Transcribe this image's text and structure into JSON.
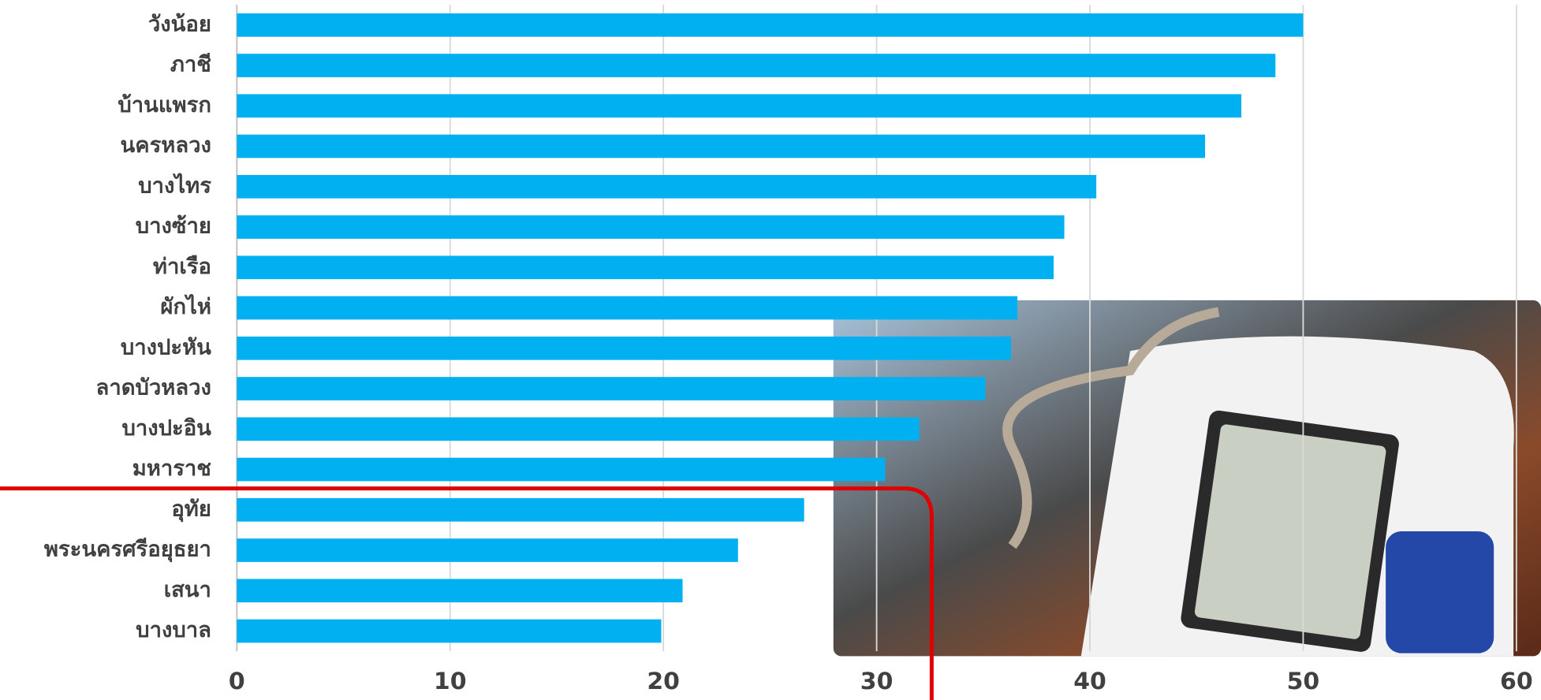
{
  "chart_data": {
    "type": "bar",
    "orientation": "horizontal",
    "categories": [
      "วังน้อย",
      "ภาชี",
      "บ้านแพรก",
      "นครหลวง",
      "บางไทร",
      "บางซ้าย",
      "ท่าเรือ",
      "ผักไห่",
      "บางปะหัน",
      "ลาดบัวหลวง",
      "บางปะอิน",
      "มหาราช",
      "อุทัย",
      "พระนครศรีอยุธยา",
      "เสนา",
      "บางบาล"
    ],
    "values": [
      50.0,
      48.7,
      47.1,
      45.4,
      40.3,
      38.8,
      38.3,
      36.6,
      36.3,
      35.1,
      32.0,
      30.4,
      26.6,
      23.5,
      20.9,
      19.9
    ],
    "color": "#00b0f0",
    "xlim": [
      0,
      60
    ],
    "xticks": [
      0,
      10,
      20,
      30,
      40,
      50,
      60
    ],
    "grid": true
  }
}
